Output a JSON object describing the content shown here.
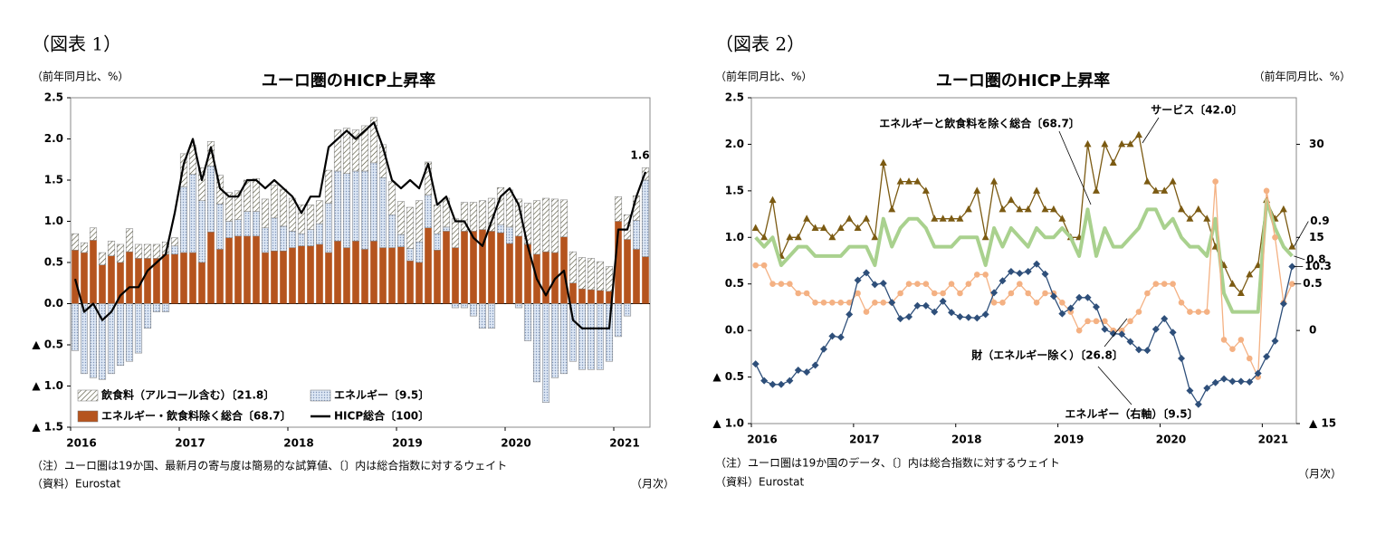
{
  "chart_data": [
    {
      "type": "bar",
      "label": "（図表 1）",
      "title": "ユーロ圏のHICP上昇率",
      "ylabel": "（前年同月比、%）",
      "note": "（注）ユーロ圏は19か国、最新月の寄与度は簡易的な試算値、〔〕内は総合指数に対するウェイト",
      "source": "（資料）Eurostat",
      "xlabel": "（月次）",
      "categories": [
        "2016",
        null,
        null,
        null,
        null,
        null,
        null,
        null,
        null,
        null,
        null,
        null,
        "2017",
        null,
        null,
        null,
        null,
        null,
        null,
        null,
        null,
        null,
        null,
        null,
        "2018",
        null,
        null,
        null,
        null,
        null,
        null,
        null,
        null,
        null,
        null,
        null,
        "2019",
        null,
        null,
        null,
        null,
        null,
        null,
        null,
        null,
        null,
        null,
        null,
        "2020",
        null,
        null,
        null,
        null,
        null,
        null,
        null,
        null,
        null,
        null,
        null,
        "2021",
        null,
        null,
        null
      ],
      "ylim": [
        -1.5,
        2.5
      ],
      "yticks": [
        {
          "value": -1.5,
          "label": "▲ 1.5"
        },
        {
          "value": -1,
          "label": "▲ 1.0"
        },
        {
          "value": -0.5,
          "label": "▲ 0.5"
        },
        {
          "value": 0,
          "label": "0.0"
        },
        0.5,
        {
          "value": 1,
          "label": "1.0"
        },
        1.5,
        {
          "value": 2,
          "label": "2.0"
        },
        2.5
      ],
      "grid": false,
      "legend": "lower left",
      "series": [
        {
          "name": "飲食料（アルコール含む）〔21.8〕",
          "color": "#4a4a30",
          "pattern": "hatch",
          "values": [
            0.2,
            0.12,
            0.15,
            0.15,
            0.18,
            0.22,
            0.28,
            0.17,
            0.17,
            0.17,
            0.15,
            0.1,
            0.4,
            0.35,
            0.4,
            0.3,
            0.35,
            0.35,
            0.35,
            0.38,
            0.4,
            0.35,
            0.4,
            0.45,
            0.4,
            0.35,
            0.3,
            0.28,
            0.4,
            0.5,
            0.55,
            0.5,
            0.55,
            0.55,
            0.4,
            0.4,
            0.4,
            0.5,
            0.5,
            0.4,
            0.35,
            0.35,
            0.35,
            0.35,
            0.35,
            0.35,
            0.4,
            0.45,
            0.45,
            0.45,
            0.5,
            0.65,
            0.65,
            0.65,
            0.45,
            0.38,
            0.38,
            0.38,
            0.35,
            0.3,
            0.3,
            0.3,
            0.3,
            0.15
          ]
        },
        {
          "name": "エネルギー〔9.5〕",
          "color": "#9fb6d8",
          "pattern": "dots",
          "values": [
            -0.57,
            -0.85,
            -0.9,
            -0.92,
            -0.85,
            -0.75,
            -0.7,
            -0.6,
            -0.3,
            -0.1,
            -0.1,
            0.1,
            0.8,
            0.95,
            0.75,
            0.8,
            0.55,
            0.2,
            0.2,
            0.3,
            0.3,
            0.3,
            0.4,
            0.3,
            0.2,
            0.15,
            0.2,
            0.25,
            0.6,
            0.85,
            0.9,
            0.85,
            0.95,
            0.95,
            0.85,
            0.4,
            0.15,
            0.15,
            0.25,
            0.4,
            0.2,
            0.05,
            -0.05,
            -0.05,
            -0.15,
            -0.3,
            -0.3,
            0.1,
            0.2,
            -0.05,
            -0.45,
            -0.95,
            -1.2,
            -0.9,
            -0.85,
            -0.7,
            -0.8,
            -0.8,
            -0.8,
            -0.7,
            -0.4,
            -0.15,
            0.35,
            0.93
          ]
        },
        {
          "name": "エネルギー・飲食料除く総合〔68.7〕",
          "color": "#b5541e",
          "values": [
            0.65,
            0.62,
            0.77,
            0.47,
            0.58,
            0.5,
            0.63,
            0.55,
            0.55,
            0.55,
            0.6,
            0.6,
            0.62,
            0.62,
            0.5,
            0.87,
            0.66,
            0.8,
            0.82,
            0.82,
            0.82,
            0.62,
            0.64,
            0.64,
            0.68,
            0.7,
            0.7,
            0.72,
            0.62,
            0.76,
            0.68,
            0.76,
            0.66,
            0.76,
            0.68,
            0.68,
            0.69,
            0.52,
            0.5,
            0.92,
            0.65,
            0.88,
            0.68,
            0.88,
            0.88,
            0.9,
            0.88,
            0.86,
            0.73,
            0.82,
            0.72,
            0.6,
            0.63,
            0.62,
            0.81,
            0.25,
            0.18,
            0.17,
            0.16,
            0.15,
            1.0,
            0.78,
            0.66,
            0.57
          ]
        },
        {
          "name": "HICP総合〔100〕",
          "color": "#000000",
          "type": "line",
          "values": [
            0.3,
            -0.1,
            0.0,
            -0.2,
            -0.1,
            0.1,
            0.2,
            0.2,
            0.4,
            0.5,
            0.6,
            1.1,
            1.7,
            2.0,
            1.5,
            1.9,
            1.4,
            1.3,
            1.3,
            1.5,
            1.5,
            1.4,
            1.5,
            1.4,
            1.3,
            1.1,
            1.3,
            1.3,
            1.9,
            2.0,
            2.1,
            2.0,
            2.1,
            2.2,
            1.9,
            1.5,
            1.4,
            1.5,
            1.4,
            1.7,
            1.2,
            1.3,
            1.0,
            1.0,
            0.8,
            0.7,
            1.0,
            1.3,
            1.4,
            1.2,
            0.7,
            0.3,
            0.1,
            0.3,
            0.4,
            -0.2,
            -0.3,
            -0.3,
            -0.3,
            -0.3,
            0.9,
            0.9,
            1.3,
            1.6
          ]
        }
      ]
    },
    {
      "type": "line",
      "label": "（図表 2）",
      "title": "ユーロ圏のHICP上昇率",
      "ylabel": "（前年同月比、%）",
      "y2label": "（前年同月比、%）",
      "note": "（注）ユーロ圏は19か国のデータ、〔〕内は総合指数に対するウェイト",
      "source": "（資料）Eurostat",
      "xlabel": "（月次）",
      "categories": [
        "2016",
        null,
        null,
        null,
        null,
        null,
        null,
        null,
        null,
        null,
        null,
        null,
        "2017",
        null,
        null,
        null,
        null,
        null,
        null,
        null,
        null,
        null,
        null,
        null,
        "2018",
        null,
        null,
        null,
        null,
        null,
        null,
        null,
        null,
        null,
        null,
        null,
        "2019",
        null,
        null,
        null,
        null,
        null,
        null,
        null,
        null,
        null,
        null,
        null,
        "2020",
        null,
        null,
        null,
        null,
        null,
        null,
        null,
        null,
        null,
        null,
        null,
        "2021",
        null,
        null,
        null
      ],
      "ylim": [
        -1.0,
        2.5
      ],
      "yticks": [
        {
          "value": -1,
          "label": "▲ 1.0"
        },
        {
          "value": -0.5,
          "label": "▲ 0.5"
        },
        {
          "value": 0,
          "label": "0.0"
        },
        0.5,
        {
          "value": 1,
          "label": "1.0"
        },
        1.5,
        {
          "value": 2,
          "label": "2.0"
        },
        2.5
      ],
      "y2lim": [
        -15,
        37.5
      ],
      "y2ticks": [
        {
          "value": -15,
          "label": "▲ 15"
        },
        0,
        15,
        30
      ],
      "grid": false,
      "series": [
        {
          "name": "サービス〔42.0〕",
          "color": "#7b5a12",
          "marker": "triangle",
          "values": [
            1.1,
            1.0,
            1.4,
            0.8,
            1.0,
            1.0,
            1.2,
            1.1,
            1.1,
            1.0,
            1.1,
            1.2,
            1.1,
            1.2,
            1.0,
            1.8,
            1.3,
            1.6,
            1.6,
            1.6,
            1.5,
            1.2,
            1.2,
            1.2,
            1.2,
            1.3,
            1.5,
            1.0,
            1.6,
            1.3,
            1.4,
            1.3,
            1.3,
            1.5,
            1.3,
            1.3,
            1.2,
            1.0,
            1.0,
            2.0,
            1.5,
            2.0,
            1.8,
            2.0,
            2.0,
            2.1,
            1.6,
            1.5,
            1.5,
            1.6,
            1.3,
            1.2,
            1.3,
            1.2,
            0.9,
            0.7,
            0.5,
            0.4,
            0.6,
            0.7,
            1.4,
            1.2,
            1.3,
            0.9
          ]
        },
        {
          "name": "エネルギーと飲食料を除く総合〔68.7〕",
          "color": "#a9d18e",
          "marker": "none",
          "values": [
            1.0,
            0.9,
            1.0,
            0.7,
            0.8,
            0.9,
            0.9,
            0.8,
            0.8,
            0.8,
            0.8,
            0.9,
            0.9,
            0.9,
            0.7,
            1.2,
            0.9,
            1.1,
            1.2,
            1.2,
            1.1,
            0.9,
            0.9,
            0.9,
            1.0,
            1.0,
            1.0,
            0.7,
            1.1,
            0.9,
            1.1,
            1.0,
            0.9,
            1.1,
            1.0,
            1.0,
            1.1,
            1.0,
            0.8,
            1.3,
            0.8,
            1.1,
            0.9,
            0.9,
            1.0,
            1.1,
            1.3,
            1.3,
            1.1,
            1.2,
            1.0,
            0.9,
            0.9,
            0.8,
            1.2,
            0.4,
            0.2,
            0.2,
            0.2,
            0.2,
            1.4,
            1.1,
            0.9,
            0.8
          ]
        },
        {
          "name": "財（エネルギー除く）〔26.8〕",
          "color": "#f4b183",
          "marker": "circle",
          "values": [
            0.7,
            0.7,
            0.5,
            0.5,
            0.5,
            0.4,
            0.4,
            0.3,
            0.3,
            0.3,
            0.3,
            0.3,
            0.4,
            0.2,
            0.3,
            0.3,
            0.3,
            0.4,
            0.5,
            0.5,
            0.5,
            0.4,
            0.4,
            0.5,
            0.4,
            0.5,
            0.6,
            0.6,
            0.3,
            0.3,
            0.4,
            0.5,
            0.4,
            0.3,
            0.4,
            0.4,
            0.3,
            0.2,
            0.0,
            0.1,
            0.1,
            0.1,
            0.0,
            0.0,
            0.1,
            0.2,
            0.4,
            0.5,
            0.5,
            0.5,
            0.3,
            0.2,
            0.2,
            0.2,
            1.6,
            -0.1,
            -0.2,
            -0.1,
            -0.3,
            -0.5,
            1.5,
            1.0,
            0.3,
            0.5
          ]
        },
        {
          "name": "エネルギー（右軸）〔9.5〕",
          "color": "#2e4f7a",
          "marker": "diamond",
          "axis": "y2",
          "values": [
            -5.4,
            -8.1,
            -8.7,
            -8.7,
            -8.1,
            -6.4,
            -6.7,
            -5.6,
            -3.0,
            -0.9,
            -1.1,
            2.6,
            8.1,
            9.3,
            7.4,
            7.6,
            4.5,
            1.9,
            2.2,
            4.0,
            4.0,
            3.0,
            4.7,
            2.9,
            2.2,
            2.1,
            2.0,
            2.6,
            6.1,
            8.0,
            9.5,
            9.2,
            9.5,
            10.7,
            9.1,
            5.5,
            2.7,
            3.6,
            5.3,
            5.3,
            3.8,
            0.2,
            -0.5,
            -0.6,
            -1.8,
            -3.1,
            -3.2,
            0.2,
            1.9,
            -0.3,
            -4.5,
            -9.7,
            -11.9,
            -9.3,
            -8.4,
            -7.8,
            -8.2,
            -8.2,
            -8.3,
            -6.9,
            -4.2,
            -1.7,
            4.3,
            10.3
          ]
        }
      ]
    }
  ]
}
